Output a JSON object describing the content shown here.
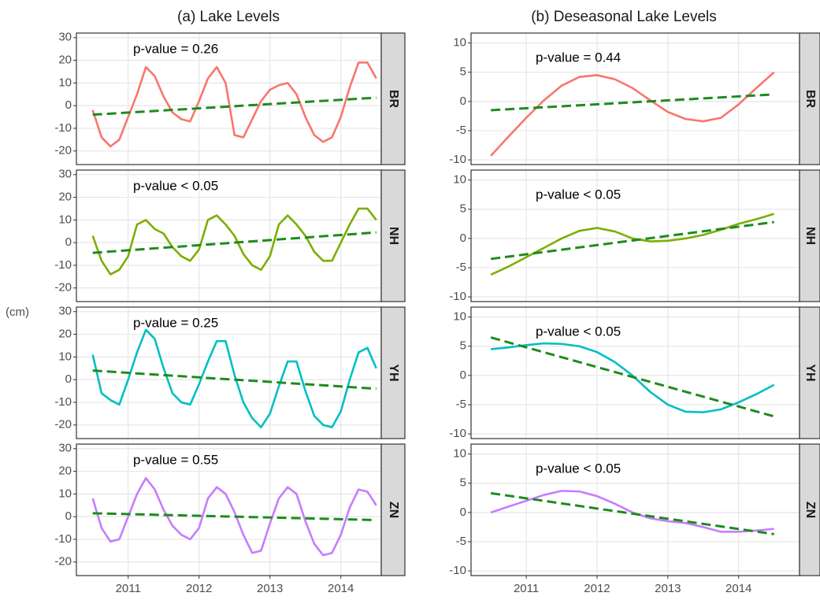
{
  "titles": [
    "(a) Lake Levels",
    "(b) Deseasonal Lake Levels"
  ],
  "y_label": "(cm)",
  "chart_data": [
    {
      "type": "line",
      "strip": "BR",
      "annotation": "p-value = 0.26",
      "x": [
        2010.5,
        2010.625,
        2010.75,
        2010.875,
        2011,
        2011.125,
        2011.25,
        2011.375,
        2011.5,
        2011.625,
        2011.75,
        2011.875,
        2012,
        2012.125,
        2012.25,
        2012.375,
        2012.5,
        2012.625,
        2012.75,
        2012.875,
        2013,
        2013.125,
        2013.25,
        2013.375,
        2013.5,
        2013.625,
        2013.75,
        2013.875,
        2014,
        2014.125,
        2014.25,
        2014.375,
        2014.5
      ],
      "xlim": [
        2010.27,
        2014.57
      ],
      "xticks": [
        2011,
        2012,
        2013,
        2014
      ],
      "ylim": [
        -26,
        32
      ],
      "yticks": [
        -20,
        -10,
        0,
        10,
        20,
        30
      ],
      "grid": true,
      "series": [
        {
          "color": "#F8766D",
          "values": [
            -2,
            -14,
            -18,
            -15,
            -5,
            5,
            17,
            13,
            4,
            -3,
            -6,
            -7,
            2,
            12,
            17,
            10,
            -13,
            -14,
            -6,
            2,
            7,
            9,
            10,
            5,
            -5,
            -13,
            -16,
            -14,
            -5,
            8,
            19,
            19,
            12
          ]
        },
        {
          "color": "#1E8B1E",
          "style": "dashed",
          "x": [
            2010.5,
            2014.5
          ],
          "values": [
            -4,
            3.5
          ]
        }
      ]
    },
    {
      "type": "line",
      "strip": "NH",
      "annotation": "p-value < 0.05",
      "x": [
        2010.5,
        2010.625,
        2010.75,
        2010.875,
        2011,
        2011.125,
        2011.25,
        2011.375,
        2011.5,
        2011.625,
        2011.75,
        2011.875,
        2012,
        2012.125,
        2012.25,
        2012.375,
        2012.5,
        2012.625,
        2012.75,
        2012.875,
        2013,
        2013.125,
        2013.25,
        2013.375,
        2013.5,
        2013.625,
        2013.75,
        2013.875,
        2014,
        2014.125,
        2014.25,
        2014.375,
        2014.5
      ],
      "xlim": [
        2010.27,
        2014.57
      ],
      "xticks": [
        2011,
        2012,
        2013,
        2014
      ],
      "ylim": [
        -26,
        32
      ],
      "yticks": [
        -20,
        -10,
        0,
        10,
        20,
        30
      ],
      "grid": true,
      "series": [
        {
          "color": "#7CAE00",
          "values": [
            3,
            -8,
            -14,
            -12,
            -6,
            8,
            10,
            6,
            4,
            -2,
            -6,
            -8,
            -3,
            10,
            12,
            8,
            3,
            -5,
            -10,
            -12,
            -6,
            8,
            12,
            8,
            3,
            -4,
            -8,
            -8,
            0,
            8,
            15,
            15,
            10
          ]
        },
        {
          "color": "#1E8B1E",
          "style": "dashed",
          "x": [
            2010.5,
            2014.5
          ],
          "values": [
            -4.5,
            4.5
          ]
        }
      ]
    },
    {
      "type": "line",
      "strip": "YH",
      "annotation": "p-value = 0.25",
      "x": [
        2010.5,
        2010.625,
        2010.75,
        2010.875,
        2011,
        2011.125,
        2011.25,
        2011.375,
        2011.5,
        2011.625,
        2011.75,
        2011.875,
        2012,
        2012.125,
        2012.25,
        2012.375,
        2012.5,
        2012.625,
        2012.75,
        2012.875,
        2013,
        2013.125,
        2013.25,
        2013.375,
        2013.5,
        2013.625,
        2013.75,
        2013.875,
        2014,
        2014.125,
        2014.25,
        2014.375,
        2014.5
      ],
      "xlim": [
        2010.27,
        2014.57
      ],
      "xticks": [
        2011,
        2012,
        2013,
        2014
      ],
      "ylim": [
        -26,
        32
      ],
      "yticks": [
        -20,
        -10,
        0,
        10,
        20,
        30
      ],
      "grid": true,
      "series": [
        {
          "color": "#00BFC4",
          "values": [
            11,
            -6,
            -9,
            -11,
            0,
            12,
            22,
            18,
            5,
            -6,
            -10,
            -11,
            -2,
            8,
            17,
            17,
            2,
            -10,
            -17,
            -21,
            -15,
            -3,
            8,
            8,
            -5,
            -16,
            -20,
            -21,
            -14,
            0,
            12,
            14,
            5
          ]
        },
        {
          "color": "#1E8B1E",
          "style": "dashed",
          "x": [
            2010.5,
            2014.5
          ],
          "values": [
            4,
            -4
          ]
        }
      ]
    },
    {
      "type": "line",
      "strip": "ZN",
      "annotation": "p-value = 0.55",
      "x": [
        2010.5,
        2010.625,
        2010.75,
        2010.875,
        2011,
        2011.125,
        2011.25,
        2011.375,
        2011.5,
        2011.625,
        2011.75,
        2011.875,
        2012,
        2012.125,
        2012.25,
        2012.375,
        2012.5,
        2012.625,
        2012.75,
        2012.875,
        2013,
        2013.125,
        2013.25,
        2013.375,
        2013.5,
        2013.625,
        2013.75,
        2013.875,
        2014,
        2014.125,
        2014.25,
        2014.375,
        2014.5
      ],
      "xlim": [
        2010.27,
        2014.57
      ],
      "xticks": [
        2011,
        2012,
        2013,
        2014
      ],
      "ylim": [
        -26,
        32
      ],
      "yticks": [
        -20,
        -10,
        0,
        10,
        20,
        30
      ],
      "grid": true,
      "series": [
        {
          "color": "#C77CFF",
          "values": [
            8,
            -5,
            -11,
            -10,
            0,
            10,
            17,
            12,
            3,
            -4,
            -8,
            -10,
            -5,
            8,
            13,
            10,
            2,
            -8,
            -16,
            -15,
            -3,
            8,
            13,
            10,
            -2,
            -12,
            -17,
            -16,
            -8,
            4,
            12,
            11,
            5
          ]
        },
        {
          "color": "#1E8B1E",
          "style": "dashed",
          "x": [
            2010.5,
            2014.5
          ],
          "values": [
            1.5,
            -1.5
          ]
        }
      ]
    },
    {
      "type": "line",
      "strip": "BR",
      "annotation": "p-value = 0.44",
      "x": [
        2010.5,
        2010.75,
        2011,
        2011.25,
        2011.5,
        2011.75,
        2012,
        2012.25,
        2012.5,
        2012.75,
        2013,
        2013.25,
        2013.5,
        2013.75,
        2014,
        2014.25,
        2014.5
      ],
      "xlim": [
        2010.22,
        2014.86
      ],
      "xticks": [
        2011,
        2012,
        2013,
        2014
      ],
      "ylim": [
        -10.8,
        11.7
      ],
      "yticks": [
        -10,
        -5,
        0,
        5,
        10
      ],
      "grid": true,
      "series": [
        {
          "color": "#F8766D",
          "values": [
            -9.3,
            -6,
            -2.8,
            0.2,
            2.7,
            4.2,
            4.5,
            3.8,
            2.3,
            0.2,
            -1.8,
            -3,
            -3.4,
            -2.8,
            -0.5,
            2.3,
            5
          ]
        },
        {
          "color": "#1E8B1E",
          "style": "dashed",
          "x": [
            2010.5,
            2014.5
          ],
          "values": [
            -1.5,
            1.2
          ]
        }
      ]
    },
    {
      "type": "line",
      "strip": "NH",
      "annotation": "p-value < 0.05",
      "x": [
        2010.5,
        2010.75,
        2011,
        2011.25,
        2011.5,
        2011.75,
        2012,
        2012.25,
        2012.5,
        2012.75,
        2013,
        2013.25,
        2013.5,
        2013.75,
        2014,
        2014.25,
        2014.5
      ],
      "xlim": [
        2010.22,
        2014.86
      ],
      "xticks": [
        2011,
        2012,
        2013,
        2014
      ],
      "ylim": [
        -10.8,
        11.7
      ],
      "yticks": [
        -10,
        -5,
        0,
        5,
        10
      ],
      "grid": true,
      "series": [
        {
          "color": "#7CAE00",
          "values": [
            -6.2,
            -4.8,
            -3.2,
            -1.6,
            0,
            1.3,
            1.8,
            1.2,
            0,
            -0.5,
            -0.4,
            0,
            0.6,
            1.5,
            2.5,
            3.3,
            4.2
          ]
        },
        {
          "color": "#1E8B1E",
          "style": "dashed",
          "x": [
            2010.5,
            2014.5
          ],
          "values": [
            -3.5,
            2.8
          ]
        }
      ]
    },
    {
      "type": "line",
      "strip": "YH",
      "annotation": "p-value < 0.05",
      "x": [
        2010.5,
        2010.75,
        2011,
        2011.25,
        2011.5,
        2011.75,
        2012,
        2012.25,
        2012.5,
        2012.75,
        2013,
        2013.25,
        2013.5,
        2013.75,
        2014,
        2014.25,
        2014.5
      ],
      "xlim": [
        2010.22,
        2014.86
      ],
      "xticks": [
        2011,
        2012,
        2013,
        2014
      ],
      "ylim": [
        -10.8,
        11.7
      ],
      "yticks": [
        -10,
        -5,
        0,
        5,
        10
      ],
      "grid": true,
      "series": [
        {
          "color": "#00BFC4",
          "values": [
            4.5,
            4.8,
            5.2,
            5.5,
            5.4,
            5,
            4,
            2.3,
            0,
            -2.8,
            -5,
            -6.2,
            -6.3,
            -5.8,
            -4.6,
            -3.2,
            -1.6
          ]
        },
        {
          "color": "#1E8B1E",
          "style": "dashed",
          "x": [
            2010.5,
            2014.5
          ],
          "values": [
            6.5,
            -7
          ]
        }
      ]
    },
    {
      "type": "line",
      "strip": "ZN",
      "annotation": "p-value < 0.05",
      "x": [
        2010.5,
        2010.75,
        2011,
        2011.25,
        2011.5,
        2011.75,
        2012,
        2012.25,
        2012.5,
        2012.75,
        2013,
        2013.25,
        2013.5,
        2013.75,
        2014,
        2014.25,
        2014.5
      ],
      "xlim": [
        2010.22,
        2014.86
      ],
      "xticks": [
        2011,
        2012,
        2013,
        2014
      ],
      "ylim": [
        -10.8,
        11.7
      ],
      "yticks": [
        -10,
        -5,
        0,
        5,
        10
      ],
      "grid": true,
      "series": [
        {
          "color": "#C77CFF",
          "values": [
            0,
            1,
            2,
            3,
            3.7,
            3.6,
            2.8,
            1.5,
            0,
            -1,
            -1.5,
            -1.8,
            -2.5,
            -3.3,
            -3.3,
            -3.1,
            -2.8
          ]
        },
        {
          "color": "#1E8B1E",
          "style": "dashed",
          "x": [
            2010.5,
            2014.5
          ],
          "values": [
            3.3,
            -3.7
          ]
        }
      ]
    }
  ]
}
